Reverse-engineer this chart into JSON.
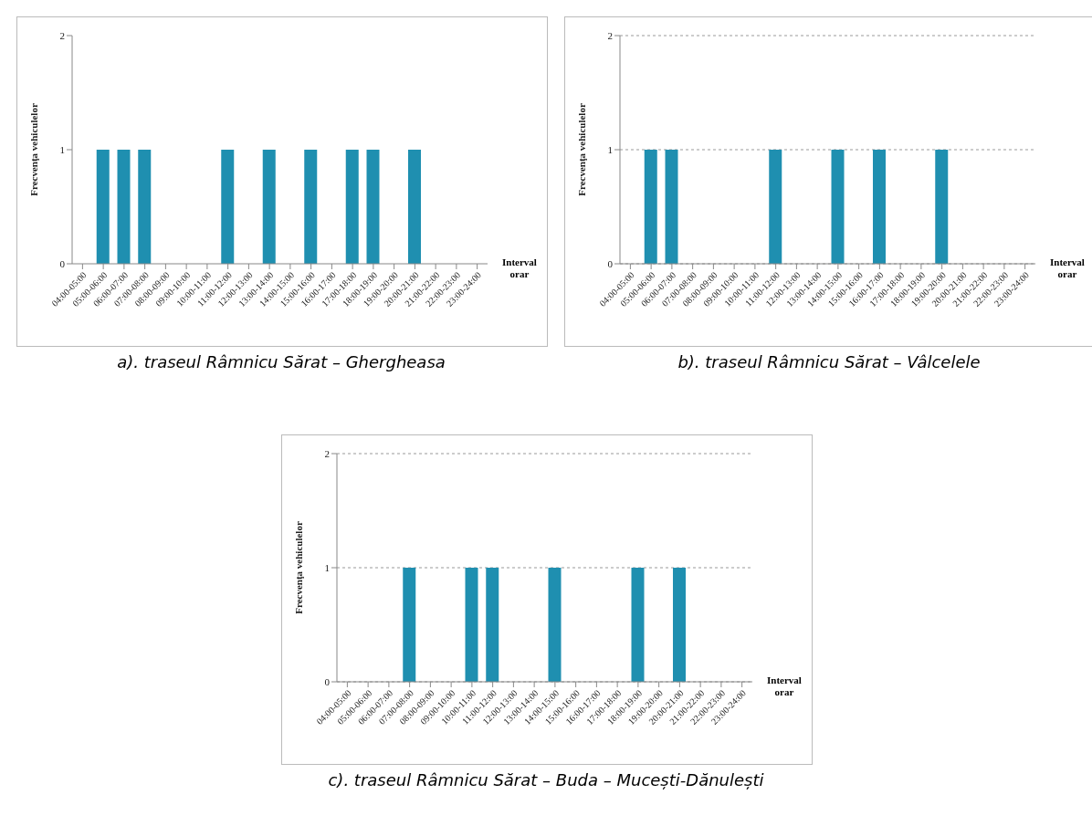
{
  "chart_data": [
    {
      "type": "bar",
      "title": "a). traseul Râmnicu Sărat – Ghergheasa",
      "xlabel": "Interval orar",
      "ylabel": "Frecvenţa vehiculelor",
      "categories": [
        "04:00-05:00",
        "05:00-06:00",
        "06:00-07:00",
        "07:00-08:00",
        "08:00-09:00",
        "09:00-10:00",
        "10:00-11:00",
        "11:00-12:00",
        "12:00-13:00",
        "13:00-14:00",
        "14:00-15:00",
        "15:00-16:00",
        "16:00-17:00",
        "17:00-18:00",
        "18:00-19:00",
        "19:00-20:00",
        "20:00-21:00",
        "21:00-22:00",
        "22:00-23:00",
        "23:00-24:00"
      ],
      "values": [
        0,
        1,
        1,
        1,
        0,
        0,
        0,
        1,
        0,
        1,
        0,
        1,
        0,
        1,
        1,
        0,
        1,
        0,
        0,
        0
      ],
      "color": "#1f8fb0",
      "ylim": [
        0,
        2
      ],
      "yticks": [
        0,
        1,
        2
      ],
      "grid": false,
      "legend": false
    },
    {
      "type": "bar",
      "title": "b). traseul Râmnicu Sărat – Vâlcelele",
      "xlabel": "Interval orar",
      "ylabel": "Frecvenţa vehiculelor",
      "categories": [
        "04:00-05:00",
        "05:00-06:00",
        "06:00-07:00",
        "07:00-08:00",
        "08:00-09:00",
        "09:00-10:00",
        "10:00-11:00",
        "11:00-12:00",
        "12:00-13:00",
        "13:00-14:00",
        "14:00-15:00",
        "15:00-16:00",
        "16:00-17:00",
        "17:00-18:00",
        "18:00-19:00",
        "19:00-20:00",
        "20:00-21:00",
        "21:00-22:00",
        "22:00-23:00",
        "23:00-24:00"
      ],
      "values": [
        0,
        1,
        1,
        0,
        0,
        0,
        0,
        1,
        0,
        0,
        1,
        0,
        1,
        0,
        0,
        1,
        0,
        0,
        0,
        0
      ],
      "color": "#1f8fb0",
      "ylim": [
        0,
        2
      ],
      "yticks": [
        0,
        1,
        2
      ],
      "grid": "y",
      "legend": false
    },
    {
      "type": "bar",
      "title": "c). traseul Râmnicu Sărat – Buda – Mucești-Dănulești",
      "xlabel": "Interval orar",
      "ylabel": "Frecvenţa vehiculelor",
      "categories": [
        "04:00-05:00",
        "05:00-06:00",
        "06:00-07:00",
        "07:00-08:00",
        "08:00-09:00",
        "09:00-10:00",
        "10:00-11:00",
        "11:00-12:00",
        "12:00-13:00",
        "13:00-14:00",
        "14:00-15:00",
        "15:00-16:00",
        "16:00-17:00",
        "17:00-18:00",
        "18:00-19:00",
        "19:00-20:00",
        "20:00-21:00",
        "21:00-22:00",
        "22:00-23:00",
        "23:00-24:00"
      ],
      "values": [
        0,
        0,
        0,
        1,
        0,
        0,
        1,
        1,
        0,
        0,
        1,
        0,
        0,
        0,
        1,
        0,
        1,
        0,
        0,
        0
      ],
      "color": "#1f8fb0",
      "ylim": [
        0,
        2
      ],
      "yticks": [
        0,
        1,
        2
      ],
      "grid": "y",
      "legend": false
    }
  ]
}
